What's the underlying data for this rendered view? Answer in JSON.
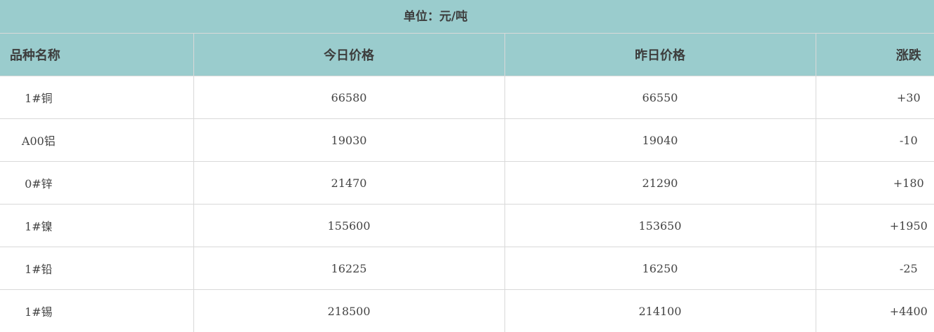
{
  "unit_label": "单位：元/吨",
  "headers": [
    "品种名称",
    "今日价格",
    "昨日价格",
    "涨跌"
  ],
  "rows": [
    {
      "name": "1#铜",
      "today": "66580",
      "yesterday": "66550",
      "change": "+30"
    },
    {
      "name": "A00铝",
      "today": "19030",
      "yesterday": "19040",
      "change": "-10"
    },
    {
      "name": "0#锌",
      "today": "21470",
      "yesterday": "21290",
      "change": "+180"
    },
    {
      "name": "1#镍",
      "today": "155600",
      "yesterday": "153650",
      "change": "+1950"
    },
    {
      "name": "1#铅",
      "today": "16225",
      "yesterday": "16250",
      "change": "-25"
    },
    {
      "name": "1#锡",
      "today": "218500",
      "yesterday": "214100",
      "change": "+4400"
    }
  ],
  "colors": {
    "header_bg": "#9acccd",
    "border": "#d9d9d9"
  }
}
